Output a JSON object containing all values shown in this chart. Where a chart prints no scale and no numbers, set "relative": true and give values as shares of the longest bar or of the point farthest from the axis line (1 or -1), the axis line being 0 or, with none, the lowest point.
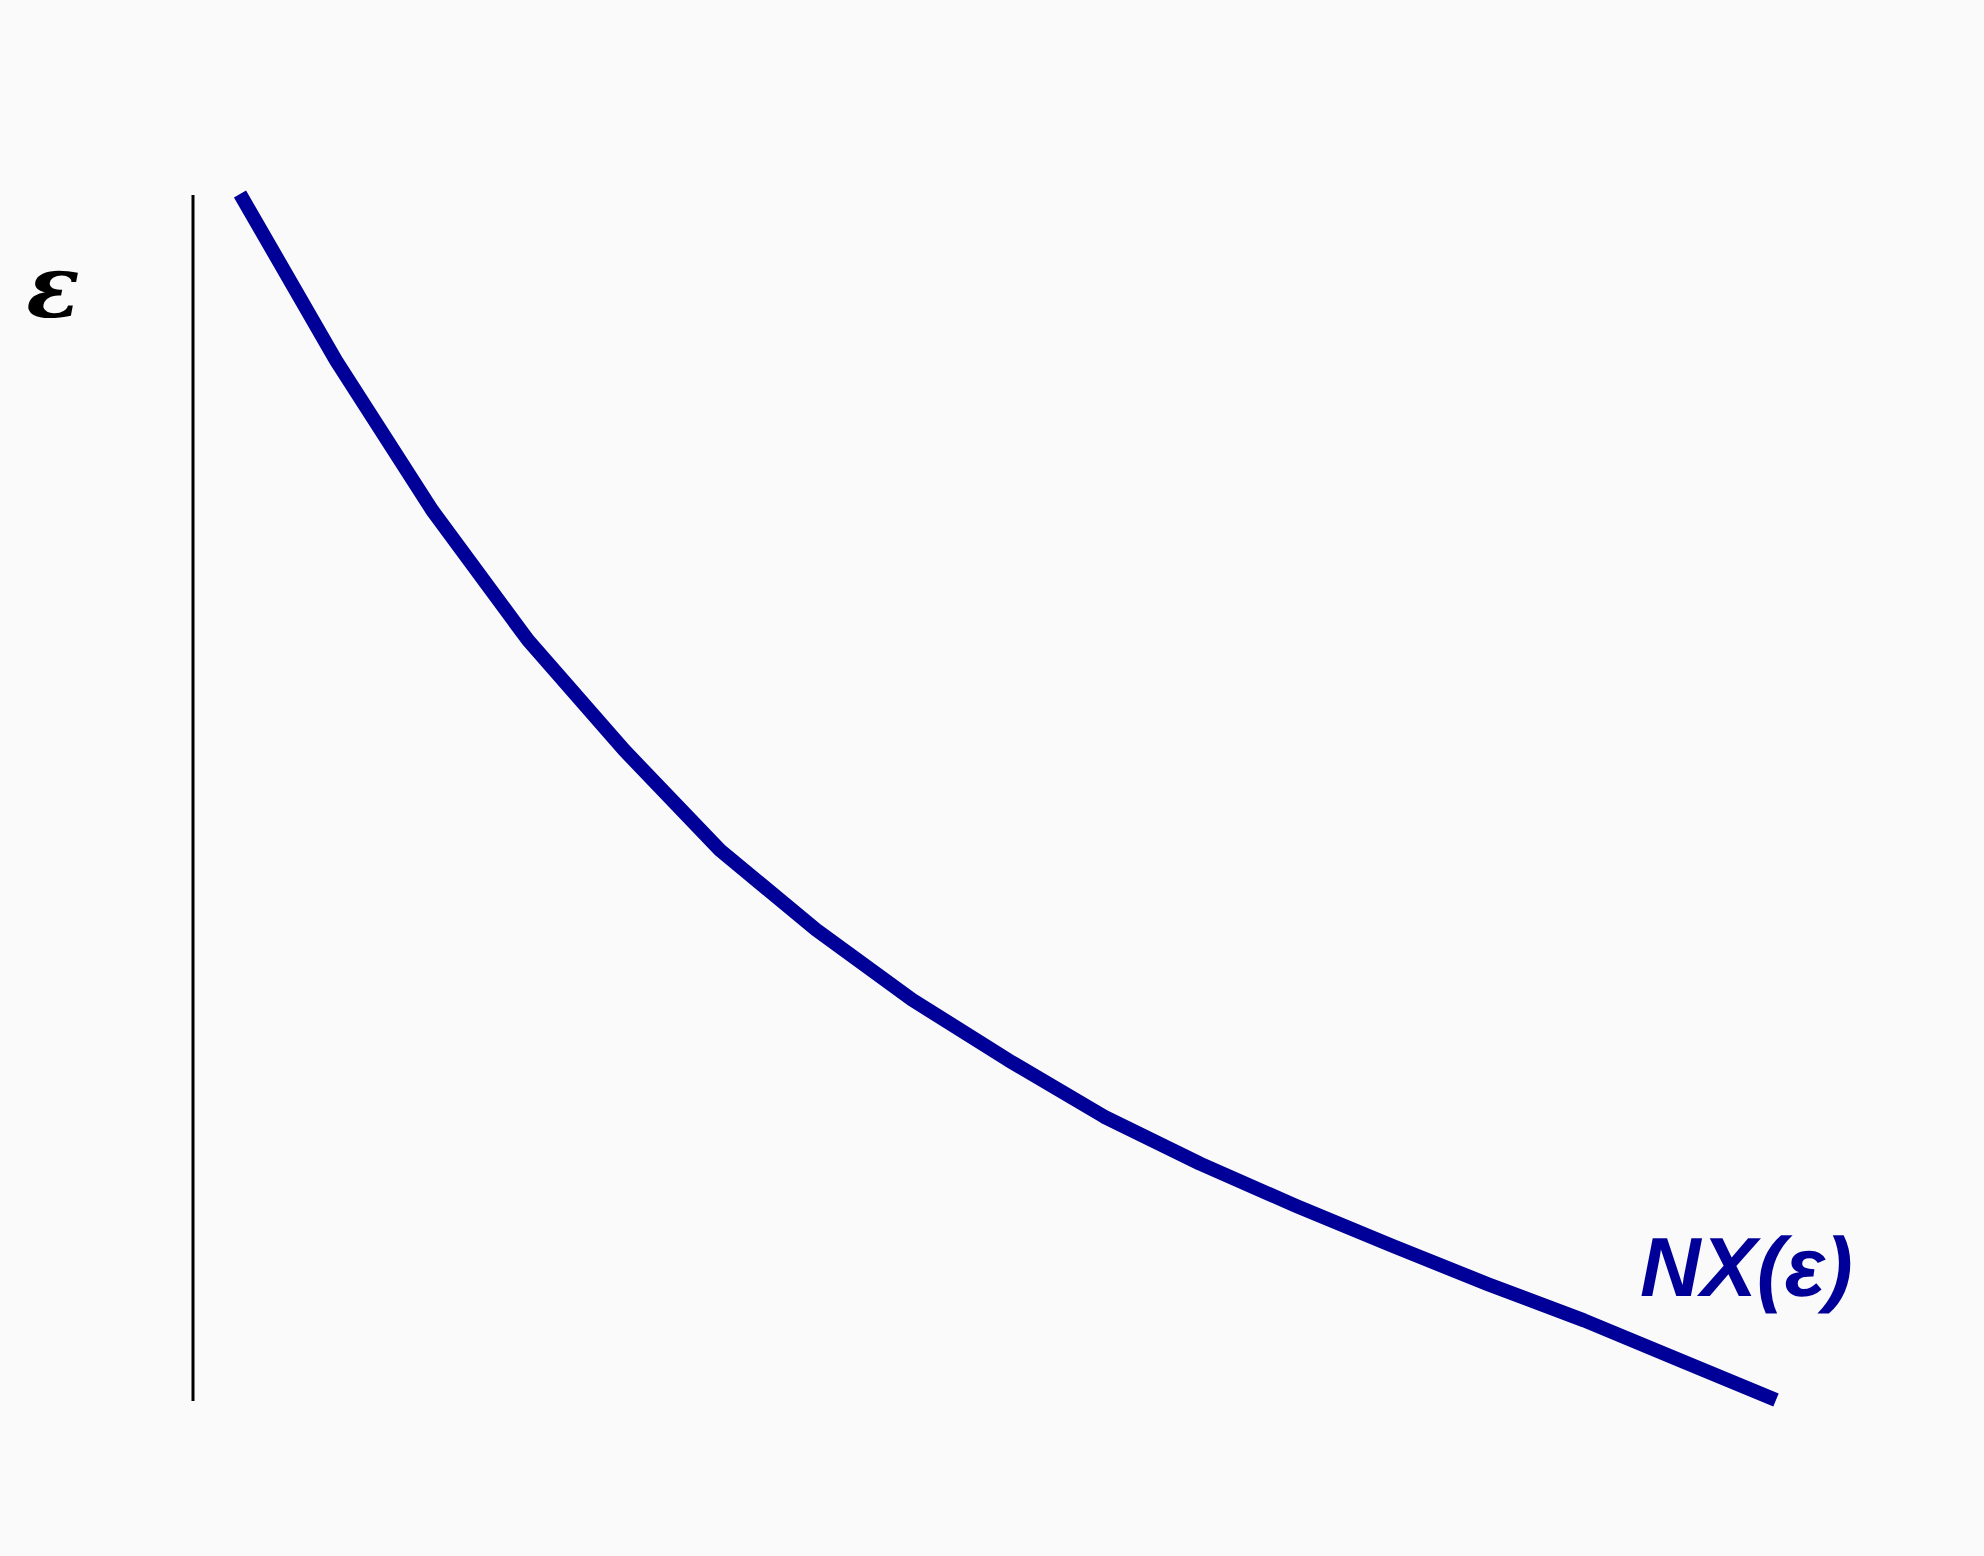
{
  "chart_data": {
    "type": "line",
    "relative": true,
    "ylabel": "ε",
    "categories": [
      null,
      null,
      null,
      null,
      null,
      null,
      null,
      null,
      null,
      null,
      null,
      null,
      null,
      null,
      null,
      null,
      null
    ],
    "series": [
      {
        "name": "NX(ε)",
        "color": "#000099",
        "values": [
          1,
          0.862,
          0.738,
          0.63,
          0.539,
          0.456,
          0.39,
          0.332,
          0.282,
          0.235,
          0.196,
          0.161,
          0.128,
          0.096,
          0.066,
          0.033,
          0
        ]
      }
    ]
  }
}
